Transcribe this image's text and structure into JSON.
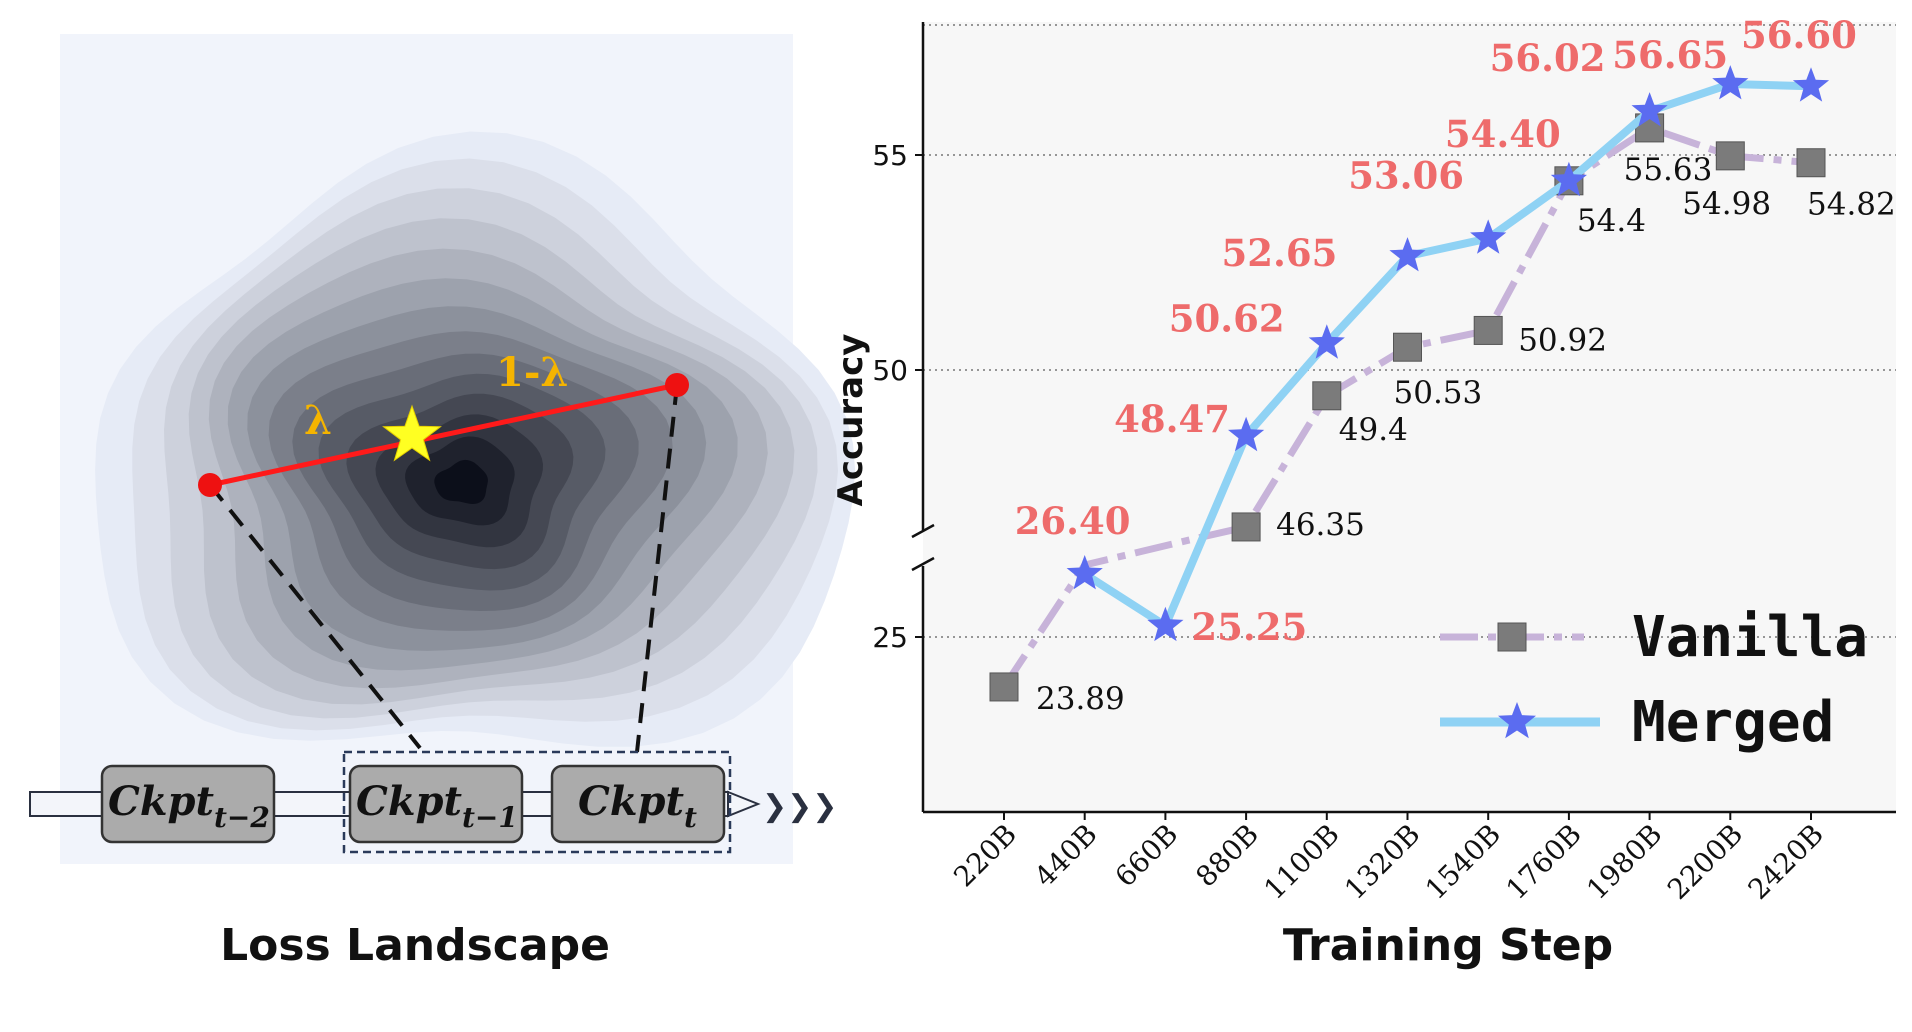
{
  "left_panel": {
    "caption": "Loss Landscape",
    "lambda_label": "λ",
    "one_minus_lambda_label": "1-λ",
    "checkpoints": [
      {
        "base": "Ckpt",
        "sub": "t−2"
      },
      {
        "base": "Ckpt",
        "sub": "t−1"
      },
      {
        "base": "Ckpt",
        "sub": "t"
      }
    ],
    "arrow_glyph": "❯❯❯",
    "colors": {
      "line": "#ff1a1a",
      "star": "#ffff22",
      "dot": "#ee1111",
      "label": "#f5b400",
      "contour_dark": "#0b0f1a",
      "contour_light": "#e6ebf6"
    }
  },
  "chart_data": {
    "type": "line",
    "categories": [
      "220B",
      "440B",
      "660B",
      "880B",
      "1100B",
      "1320B",
      "1540B",
      "1760B",
      "1980B",
      "2200B",
      "2420B"
    ],
    "series": [
      {
        "name": "Vanilla",
        "values": [
          23.89,
          null,
          null,
          46.35,
          49.4,
          50.53,
          50.92,
          54.4,
          55.63,
          54.98,
          54.82
        ],
        "labels": [
          "23.89",
          null,
          null,
          "46.35",
          "49.4",
          "50.53",
          "50.92",
          "54.4",
          "55.63",
          "54.98",
          "54.82"
        ],
        "color": "#c7b3d9",
        "marker": "square",
        "marker_color": "#7b7b7b"
      },
      {
        "name": "Merged",
        "values": [
          null,
          26.4,
          25.25,
          48.47,
          50.62,
          52.65,
          53.06,
          54.4,
          56.02,
          56.65,
          56.6
        ],
        "labels": [
          null,
          "26.40",
          "25.25",
          "48.47",
          "50.62",
          "52.65",
          "53.06",
          "54.40",
          "56.02",
          "56.65",
          "56.60"
        ],
        "color": "#8fd2f4",
        "marker": "star",
        "marker_color": "#5b6cf0"
      }
    ],
    "xlabel": "Training Step",
    "ylabel": "Accuracy",
    "yticks": [
      25,
      50,
      55
    ],
    "broken_y_axis": true,
    "grid": "horizontal-dotted",
    "legend_position": "bottom-right",
    "label_color_merged": "#ee6b6b"
  }
}
